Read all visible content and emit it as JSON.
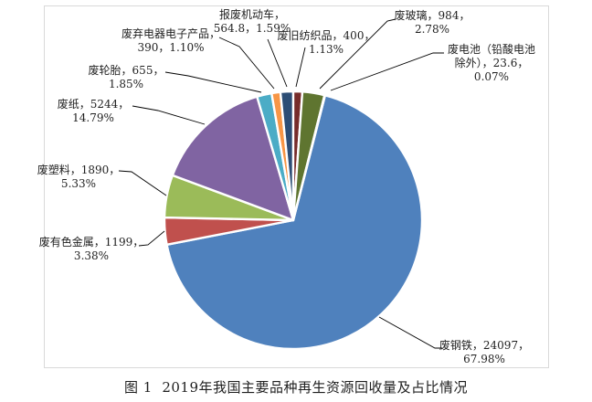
{
  "figure": {
    "caption": "图 1  2019年我国主要品种再生资源回收量及占比情况"
  },
  "chart_data": {
    "type": "pie",
    "title": "图 1  2019年我国主要品种再生资源回收量及占比情况",
    "legend": "none",
    "total": 35447.4,
    "start_angle_deg_clockwise_from_top": 14.3,
    "direction": "clockwise",
    "slice_border_color": "#ffffff",
    "frame_border_color": "#d9d9d9",
    "leader_line_color": "#000000",
    "text_color": "#1f1f1f",
    "series": [
      {
        "key": "scrap-steel",
        "name": "废钢铁",
        "value": 24097,
        "pct": "67.98%",
        "color": "#4F81BD",
        "label_lines": [
          "废钢铁，24097，",
          "67.98%"
        ]
      },
      {
        "key": "nonferrous-metals",
        "name": "废有色金属",
        "value": 1199,
        "pct": "3.38%",
        "color": "#C0504D",
        "label_lines": [
          "废有色金属，1199，",
          "3.38%"
        ]
      },
      {
        "key": "waste-plastics",
        "name": "废塑料",
        "value": 1890,
        "pct": "5.33%",
        "color": "#9BBB59",
        "label_lines": [
          "废塑料，1890，",
          "5.33%"
        ]
      },
      {
        "key": "waste-paper",
        "name": "废纸",
        "value": 5244,
        "pct": "14.79%",
        "color": "#8064A2",
        "label_lines": [
          "废纸，5244，",
          "14.79%"
        ]
      },
      {
        "key": "waste-tires",
        "name": "废轮胎",
        "value": 655,
        "pct": "1.85%",
        "color": "#4BACC6",
        "label_lines": [
          "废轮胎，655，",
          "1.85%"
        ]
      },
      {
        "key": "waste-electronics",
        "name": "废弃电器电子产品",
        "value": 390,
        "pct": "1.10%",
        "color": "#F79646",
        "label_lines": [
          "废弃电器电子产品，",
          "390，1.10%"
        ]
      },
      {
        "key": "scrapped-vehicles",
        "name": "报废机动车",
        "value": 564.8,
        "pct": "1.59%",
        "color": "#2C4D75",
        "label_lines": [
          "报废机动车，",
          "564.8，1.59%"
        ]
      },
      {
        "key": "waste-textiles",
        "name": "废旧纺织品",
        "value": 400,
        "pct": "1.13%",
        "color": "#772C2A",
        "label_lines": [
          "废旧纺织品，400，",
          "1.13%"
        ]
      },
      {
        "key": "waste-glass",
        "name": "废玻璃",
        "value": 984,
        "pct": "2.78%",
        "color": "#5F7530",
        "label_lines": [
          "废玻璃，984，",
          "2.78%"
        ]
      },
      {
        "key": "waste-batteries",
        "name": "废电池（铅酸电池除外）",
        "value": 23.6,
        "pct": "0.07%",
        "color": "#604A7B",
        "label_lines": [
          "废电池（铅酸电池",
          "除外），23.6，",
          "0.07%"
        ]
      }
    ]
  }
}
